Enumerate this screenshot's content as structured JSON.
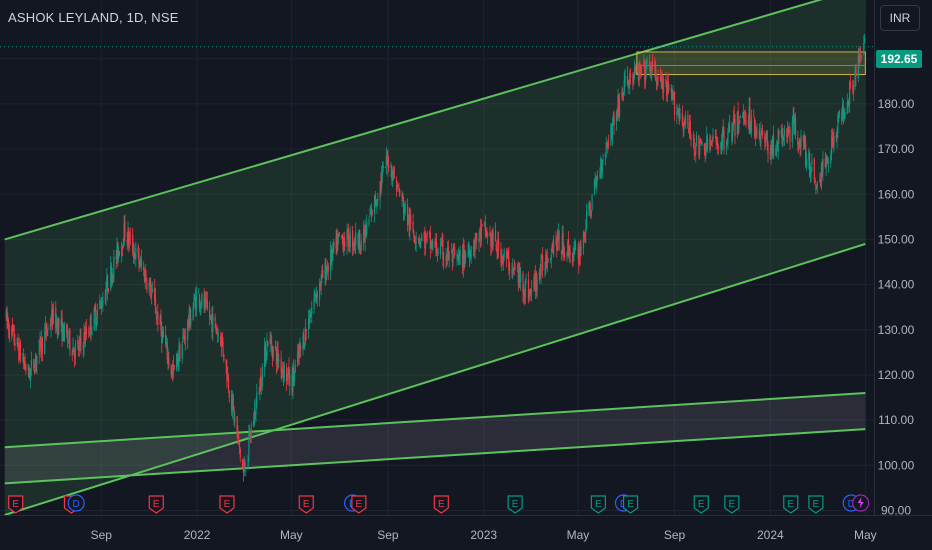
{
  "header": {
    "title": "ASHOK LEYLAND, 1D, NSE",
    "currency": "INR"
  },
  "price_axis": {
    "last_price": "192.65",
    "last_price_color": "#089981"
  },
  "colors": {
    "channel": "#5cc35c",
    "up": "#089981",
    "down": "#f23645",
    "dividend": "#2962ff",
    "split": "#9c27b0"
  },
  "chart_data": {
    "type": "candlestick",
    "title": "ASHOK LEYLAND, 1D, NSE",
    "ylim": [
      89,
      203
    ],
    "y_ticks": [
      "90.00",
      "100.00",
      "110.00",
      "120.00",
      "130.00",
      "140.00",
      "150.00",
      "160.00",
      "170.00",
      "180.00",
      "190.00"
    ],
    "x_ticks": [
      "Sep",
      "2022",
      "May",
      "Sep",
      "2023",
      "May",
      "Sep",
      "2024",
      "May"
    ],
    "x_range": [
      "2021-05",
      "2024-05"
    ],
    "price_path": [
      [
        "2021-05-01",
        133
      ],
      [
        "2021-06-01",
        120
      ],
      [
        "2021-07-01",
        133
      ],
      [
        "2021-08-01",
        125
      ],
      [
        "2021-09-01",
        136
      ],
      [
        "2021-10-01",
        152
      ],
      [
        "2021-11-01",
        140
      ],
      [
        "2021-12-01",
        120
      ],
      [
        "2022-01-01",
        138
      ],
      [
        "2022-02-01",
        128
      ],
      [
        "2022-03-01",
        98
      ],
      [
        "2022-04-01",
        128
      ],
      [
        "2022-05-01",
        118
      ],
      [
        "2022-06-01",
        138
      ],
      [
        "2022-07-01",
        150
      ],
      [
        "2022-08-01",
        150
      ],
      [
        "2022-09-01",
        168
      ],
      [
        "2022-10-01",
        152
      ],
      [
        "2022-11-01",
        148
      ],
      [
        "2022-12-01",
        145
      ],
      [
        "2023-01-01",
        152
      ],
      [
        "2023-02-01",
        145
      ],
      [
        "2023-03-01",
        138
      ],
      [
        "2023-04-01",
        150
      ],
      [
        "2023-05-01",
        146
      ],
      [
        "2023-06-01",
        168
      ],
      [
        "2023-07-01",
        185
      ],
      [
        "2023-08-01",
        188
      ],
      [
        "2023-09-01",
        180
      ],
      [
        "2023-10-01",
        170
      ],
      [
        "2023-11-01",
        172
      ],
      [
        "2023-12-01",
        178
      ],
      [
        "2024-01-01",
        170
      ],
      [
        "2024-02-01",
        175
      ],
      [
        "2024-03-01",
        162
      ],
      [
        "2024-04-01",
        178
      ],
      [
        "2024-04-30",
        192.65
      ]
    ],
    "annotations": {
      "channel_upper": [
        [
          "2021-05-01",
          150
        ],
        [
          "2024-05-01",
          206
        ]
      ],
      "channel_lower": [
        [
          "2021-05-01",
          89
        ],
        [
          "2024-05-01",
          149
        ]
      ],
      "lower_band_top": [
        [
          "2021-05-01",
          104
        ],
        [
          "2024-05-01",
          116
        ]
      ],
      "lower_band_bottom": [
        [
          "2021-05-01",
          96
        ],
        [
          "2024-05-01",
          108
        ]
      ],
      "resistance_zone": {
        "from": "2023-07-15",
        "to": "2024-05-01",
        "low": 186.5,
        "high": 191.5,
        "mid": 188.5
      }
    },
    "events": [
      {
        "type": "E",
        "date": "2021-05-15"
      },
      {
        "type": "E",
        "date": "2021-07-25"
      },
      {
        "type": "D",
        "date": "2021-07-31"
      },
      {
        "type": "E",
        "date": "2021-11-10"
      },
      {
        "type": "E",
        "date": "2022-02-08"
      },
      {
        "type": "E",
        "date": "2022-05-20"
      },
      {
        "type": "D",
        "date": "2022-07-18"
      },
      {
        "type": "E",
        "date": "2022-07-26"
      },
      {
        "type": "E",
        "date": "2022-11-08"
      },
      {
        "type": "E",
        "date": "2023-02-10"
      },
      {
        "type": "E",
        "date": "2023-05-27"
      },
      {
        "type": "D",
        "date": "2023-06-28"
      },
      {
        "type": "E",
        "date": "2023-07-07"
      },
      {
        "type": "E",
        "date": "2023-10-05"
      },
      {
        "type": "E",
        "date": "2023-11-13"
      },
      {
        "type": "E",
        "date": "2024-01-27"
      },
      {
        "type": "E",
        "date": "2024-02-28"
      },
      {
        "type": "D",
        "date": "2024-04-13"
      },
      {
        "type": "split",
        "date": "2024-04-25"
      }
    ]
  }
}
